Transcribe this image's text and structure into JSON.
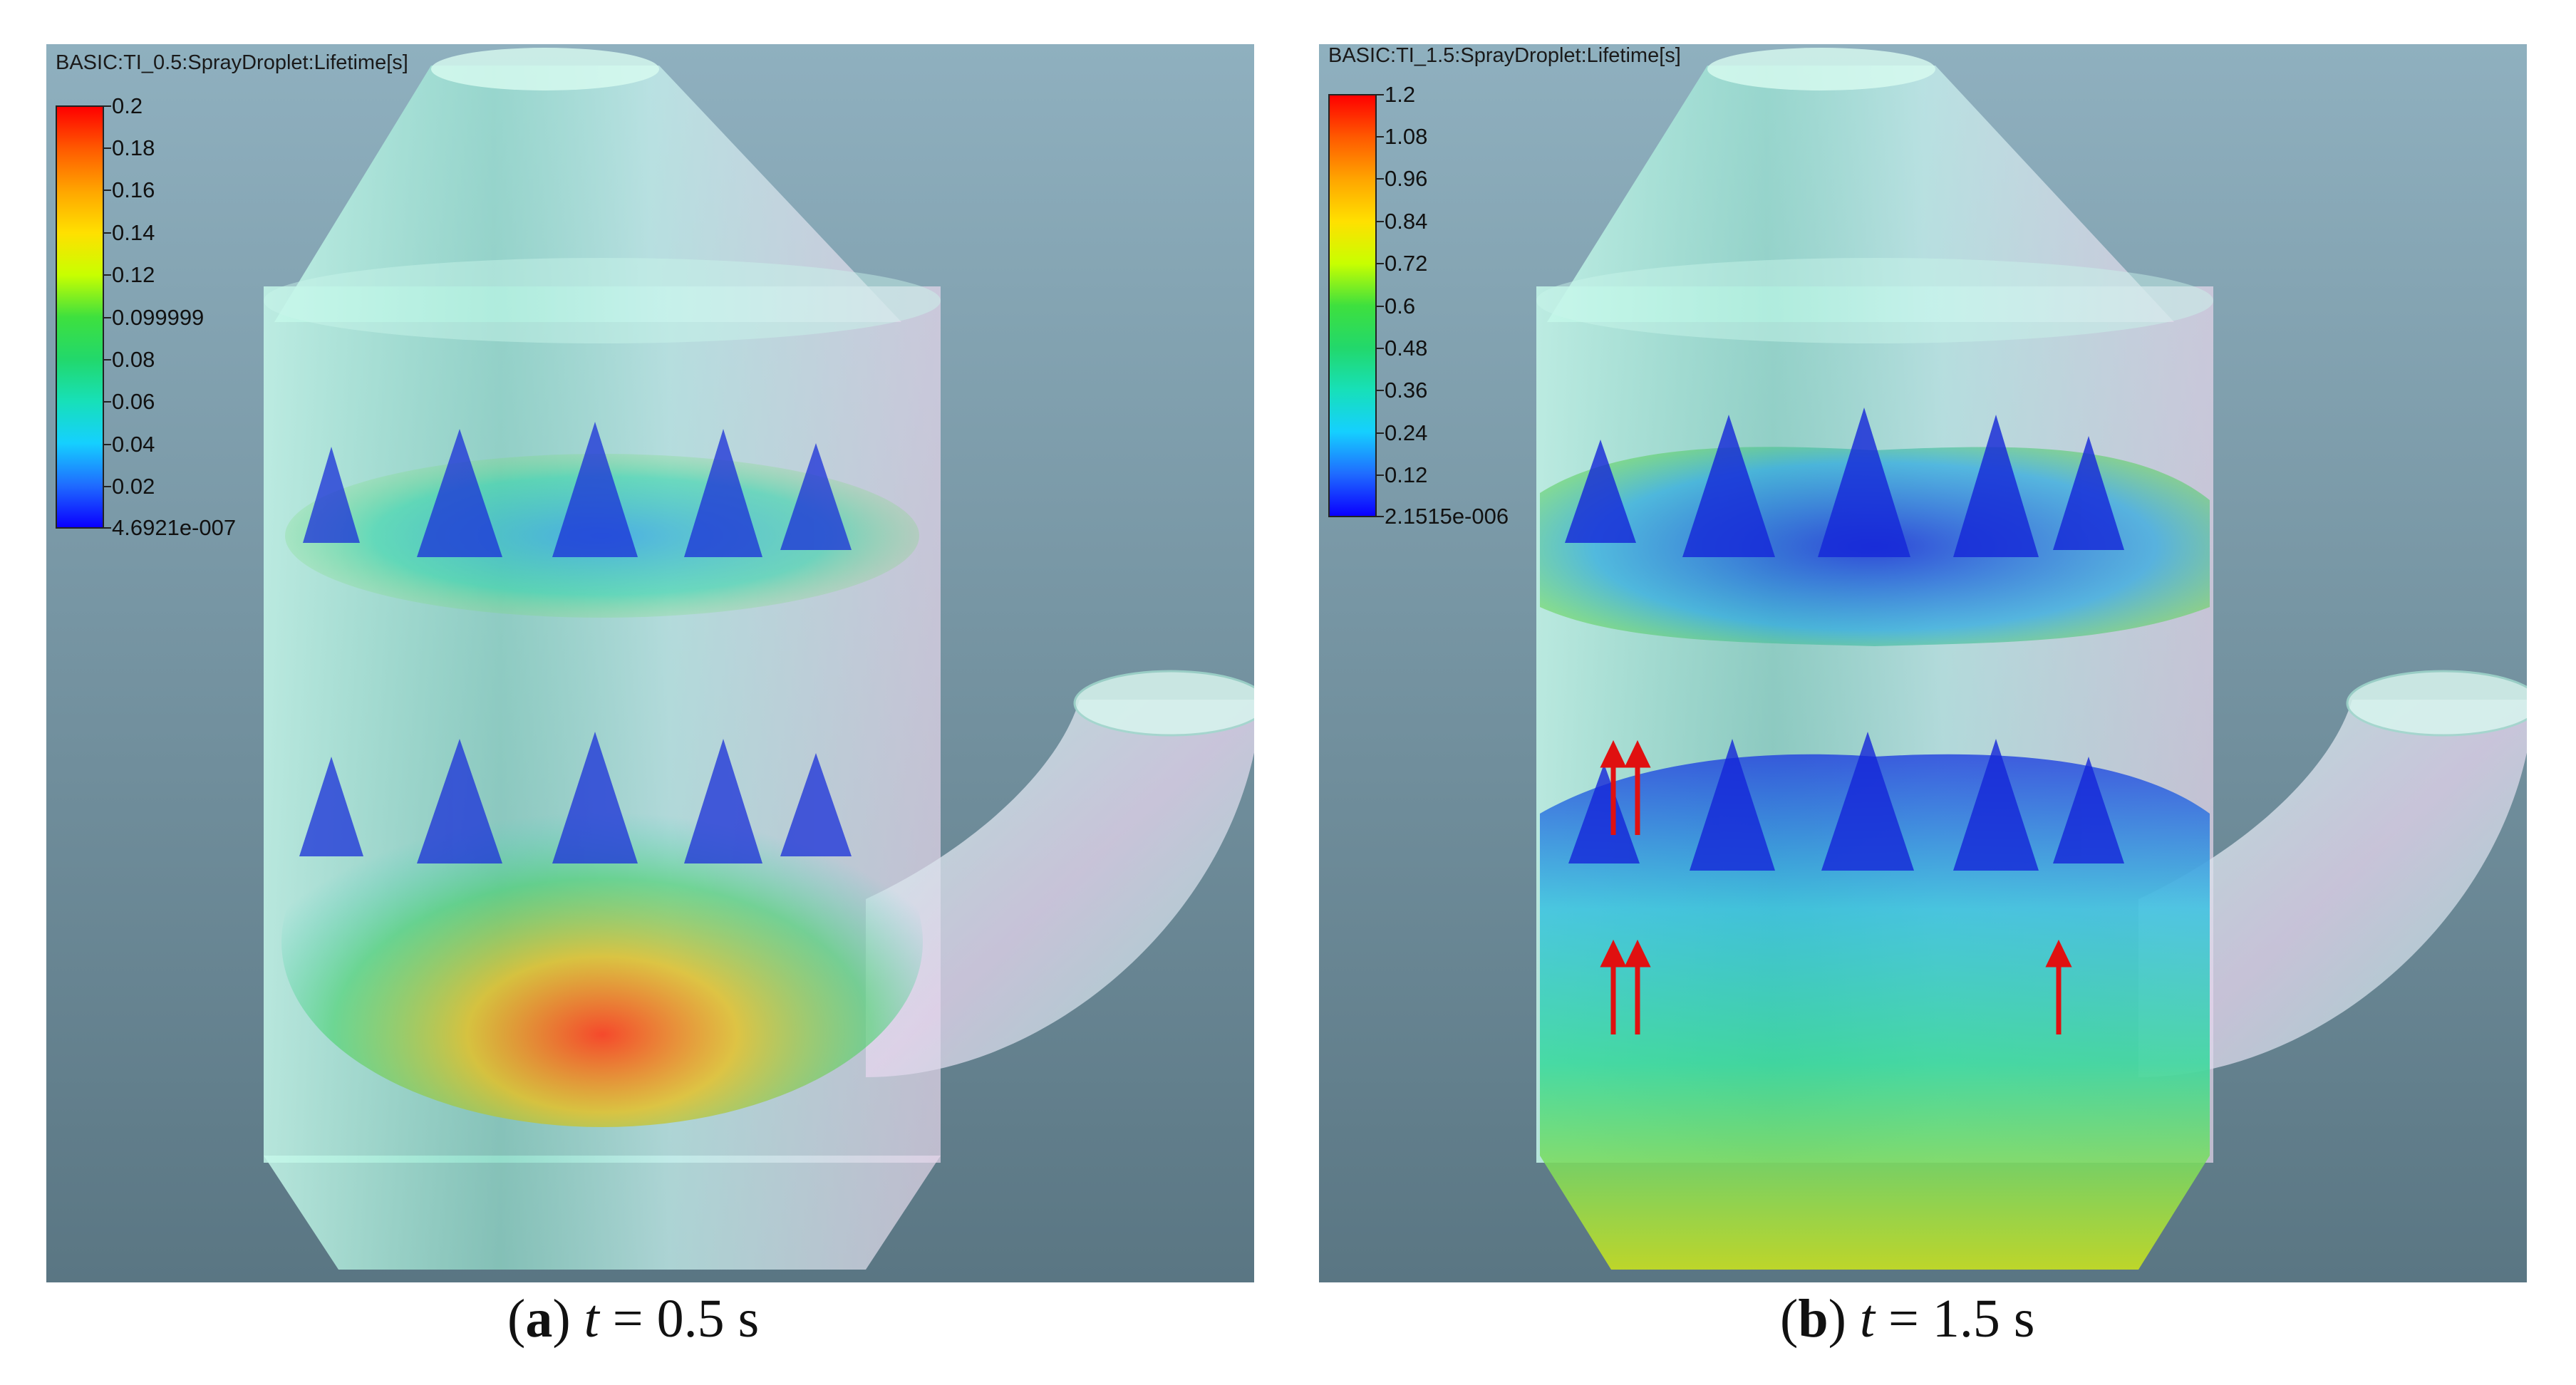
{
  "panels": [
    {
      "legend_title": "BASIC:TI_0.5:SprayDroplet:Lifetime[s]",
      "ticks": [
        "0.2",
        "0.18",
        "0.16",
        "0.14",
        "0.12",
        "0.099999",
        "0.08",
        "0.06",
        "0.04",
        "0.02",
        "4.6921e-007"
      ],
      "caption": {
        "letter": "a",
        "var": "t",
        "equals": " = 0.5 s"
      }
    },
    {
      "legend_title": "BASIC:TI_1.5:SprayDroplet:Lifetime[s]",
      "ticks": [
        "1.2",
        "1.08",
        "0.96",
        "0.84",
        "0.72",
        "0.6",
        "0.48",
        "0.36",
        "0.24",
        "0.12",
        "2.1515e-006"
      ],
      "caption": {
        "letter": "b",
        "var": "t",
        "equals": " = 1.5 s"
      }
    }
  ],
  "colors": {
    "background": "#6a8a9a",
    "vessel_glass": "#b8f5e4",
    "arrow": "#e01010"
  }
}
